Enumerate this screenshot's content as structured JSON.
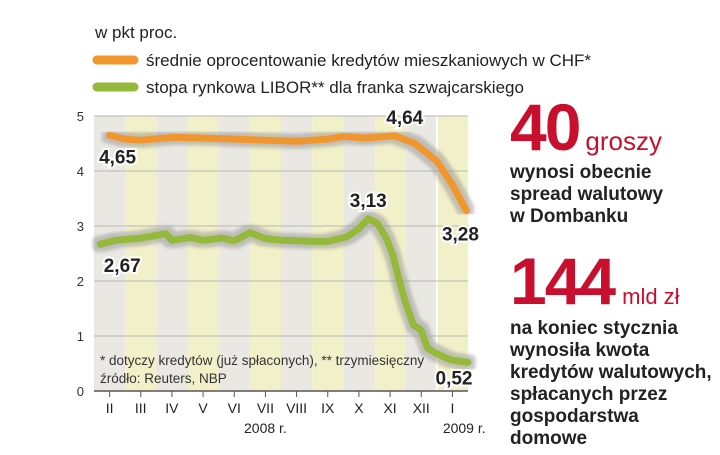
{
  "chart_data": {
    "type": "line",
    "unit_label": "w pkt proc.",
    "categories": [
      "II",
      "III",
      "IV",
      "V",
      "VI",
      "VII",
      "VIII",
      "IX",
      "X",
      "XI",
      "XII",
      "I"
    ],
    "year_labels": [
      "2008 r.",
      "2009 r."
    ],
    "ylim": [
      0,
      5
    ],
    "yticks": [
      "0",
      "1",
      "2",
      "3",
      "4",
      "5"
    ],
    "series": [
      {
        "name": "średnie oprocentowanie kredytów mieszkaniowych w CHF*",
        "color": "#f0962d",
        "points": [
          [
            0,
            4.65
          ],
          [
            0.5,
            4.58
          ],
          [
            1,
            4.56
          ],
          [
            2,
            4.61
          ],
          [
            3,
            4.6
          ],
          [
            4,
            4.58
          ],
          [
            5,
            4.56
          ],
          [
            6,
            4.54
          ],
          [
            7,
            4.58
          ],
          [
            7.5,
            4.63
          ],
          [
            8.2,
            4.6
          ],
          [
            9.15,
            4.64
          ],
          [
            9.8,
            4.5
          ],
          [
            10.5,
            4.18
          ],
          [
            11,
            3.75
          ],
          [
            11.45,
            3.28
          ]
        ]
      },
      {
        "name": "stopa rynkowa LIBOR** dla franka szwajcarskiego",
        "color": "#94b93a",
        "points": [
          [
            -0.3,
            2.67
          ],
          [
            0.2,
            2.74
          ],
          [
            1,
            2.78
          ],
          [
            1.4,
            2.82
          ],
          [
            1.8,
            2.86
          ],
          [
            2,
            2.74
          ],
          [
            2.6,
            2.79
          ],
          [
            3,
            2.74
          ],
          [
            3.6,
            2.78
          ],
          [
            4,
            2.73
          ],
          [
            4.5,
            2.88
          ],
          [
            5,
            2.77
          ],
          [
            5.5,
            2.74
          ],
          [
            6,
            2.73
          ],
          [
            6.5,
            2.72
          ],
          [
            7,
            2.72
          ],
          [
            7.6,
            2.8
          ],
          [
            8,
            2.95
          ],
          [
            8.3,
            3.13
          ],
          [
            8.6,
            3.05
          ],
          [
            8.9,
            2.75
          ],
          [
            9.1,
            2.45
          ],
          [
            9.3,
            2.0
          ],
          [
            9.5,
            1.6
          ],
          [
            9.75,
            1.2
          ],
          [
            10,
            1.1
          ],
          [
            10.2,
            0.78
          ],
          [
            10.5,
            0.68
          ],
          [
            10.8,
            0.6
          ],
          [
            11,
            0.56
          ],
          [
            11.5,
            0.52
          ]
        ]
      }
    ],
    "annotations": [
      {
        "text": "4,65",
        "x": 0,
        "y": 4.65
      },
      {
        "text": "4,64",
        "x": 9.15,
        "y": 4.64
      },
      {
        "text": "3,28",
        "x": 11.45,
        "y": 3.28
      },
      {
        "text": "2,67",
        "x": -0.3,
        "y": 2.67
      },
      {
        "text": "3,13",
        "x": 8.3,
        "y": 3.13
      },
      {
        "text": "0,52",
        "x": 11.5,
        "y": 0.52
      }
    ],
    "footnotes": [
      "* dotyczy kredytów (już spłaconych), ** trzymiesięczny",
      "źródło: Reuters, NBP"
    ],
    "grid": "horizontal"
  },
  "facts": [
    {
      "value": "40",
      "unit": "groszy",
      "text": [
        "wynosi obecnie",
        "spread walutowy",
        "w Dombanku"
      ]
    },
    {
      "value": "144",
      "unit": "mld zł",
      "text": [
        "na koniec stycznia",
        "wynosiła kwota",
        "kredytów walutowych,",
        "spłacanych przez",
        "gospodarstwa domowe"
      ]
    }
  ]
}
